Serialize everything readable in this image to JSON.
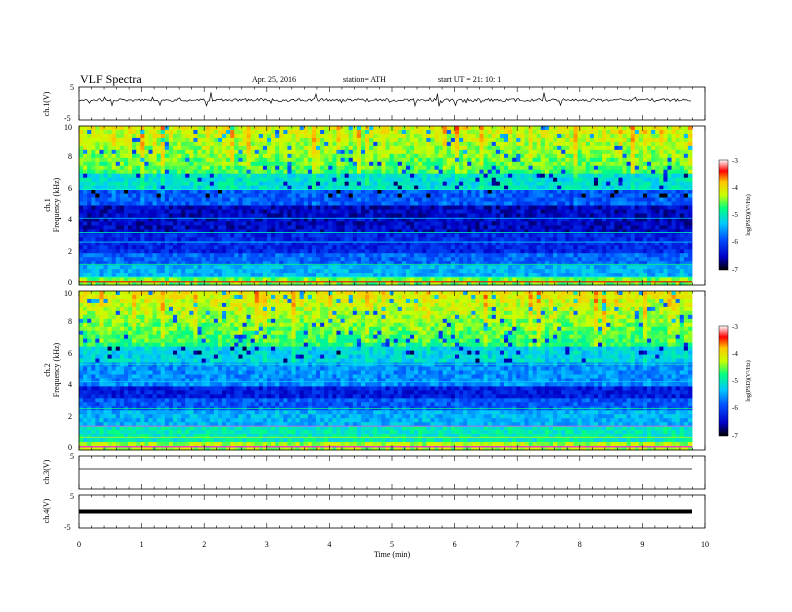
{
  "header": {
    "title": "VLF  Spectra",
    "date": "Apr. 25, 2016",
    "station": "station= ATH",
    "start": "start  UT  =    21: 10: 1"
  },
  "chart_data": [
    {
      "type": "line",
      "panel": "ch1-waveform",
      "ylabel": "ch.1(V)",
      "ylim": [
        -5,
        5
      ],
      "yticks": [
        "5",
        "-5"
      ],
      "baseline": 0,
      "color": "#000000"
    },
    {
      "type": "heatmap",
      "panel": "ch1-spectrogram",
      "ylabel_top": "ch.1",
      "ylabel": "Frequency  (kHz)",
      "ylim": [
        0,
        10
      ],
      "yticks": [
        "0",
        "2",
        "4",
        "6",
        "8",
        "10"
      ],
      "colorbar": {
        "label": "log(PSD)(V²/Hz)",
        "range": [
          -7,
          -3
        ],
        "ticks": [
          "-3",
          "-4",
          "-5",
          "-6",
          "-7"
        ]
      }
    },
    {
      "type": "heatmap",
      "panel": "ch2-spectrogram",
      "ylabel_top": "ch.2",
      "ylabel": "Frequency  (kHz)",
      "ylim": [
        0,
        10
      ],
      "yticks": [
        "0",
        "2",
        "4",
        "6",
        "8",
        "10"
      ],
      "colorbar": {
        "label": "log(PSD)(V²/Hz)",
        "range": [
          -7,
          -3
        ],
        "ticks": [
          "-3",
          "-4",
          "-5",
          "-6",
          "-7"
        ]
      }
    },
    {
      "type": "line",
      "panel": "ch3-waveform",
      "ylabel": "ch.3(V)",
      "ylim": [
        -5,
        5
      ],
      "yticks": [
        "5"
      ],
      "baseline": 0,
      "color": "#000000"
    },
    {
      "type": "line",
      "panel": "ch4-waveform",
      "ylabel": "ch.4(V)",
      "ylim": [
        -5,
        5
      ],
      "yticks": [
        "5",
        "-5"
      ],
      "baseline": 0,
      "color": "#000000"
    }
  ],
  "xaxis": {
    "label": "Time  (min)",
    "range": [
      0,
      10
    ],
    "ticks": [
      "0",
      "1",
      "2",
      "3",
      "4",
      "5",
      "6",
      "7",
      "8",
      "9",
      "10"
    ]
  },
  "colormap": [
    "#000000",
    "#0000c8",
    "#0050ff",
    "#00c8ff",
    "#00ff80",
    "#c8ff00",
    "#ffc800",
    "#ff5000",
    "#ff0000",
    "#ffffff"
  ]
}
